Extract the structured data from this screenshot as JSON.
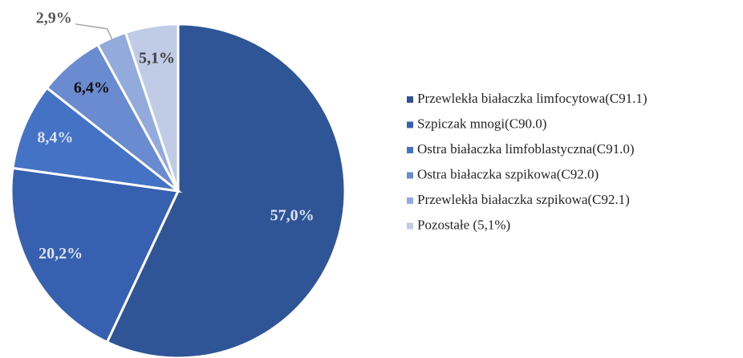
{
  "chart_data": {
    "type": "pie",
    "categories": [
      "Przewlekła białaczka limfocytowa(C91.1)",
      "Szpiczak mnogi(C90.0)",
      "Ostra białaczka limfoblastyczna(C91.0)",
      "Ostra białaczka szpikowa(C92.0)",
      "Przewlekła białaczka szpikowa(C92.1)",
      "Pozostałe (5,1%)"
    ],
    "values": [
      57.0,
      20.2,
      8.4,
      6.4,
      2.9,
      5.1
    ],
    "value_labels": [
      "57,0%",
      "20,2%",
      "8,4%",
      "6,4%",
      "2,9%",
      "5,1%"
    ],
    "colors": [
      "#2f5597",
      "#3760b0",
      "#4472c4",
      "#6a8bd0",
      "#93abdc",
      "#c0cce6"
    ],
    "value_label_colors": [
      "#dae3f3",
      "#dae3f3",
      "#dae3f3",
      "#0d0d0d",
      "#595959",
      "#404040"
    ],
    "legend": "right"
  }
}
